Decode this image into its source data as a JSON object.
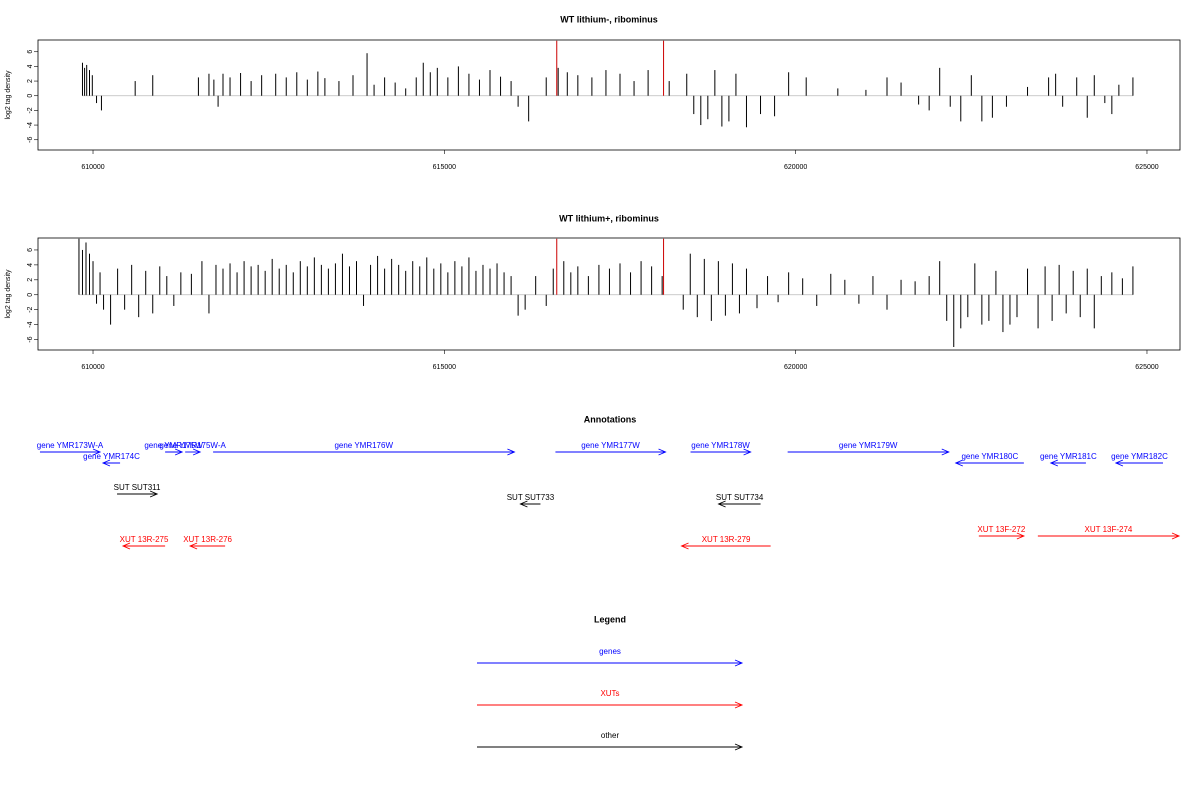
{
  "chart_data": [
    {
      "type": "bar",
      "title": "WT lithium-, ribominus",
      "ylabel": "log2 tag density",
      "xlim": [
        609217,
        625470
      ],
      "ylim": [
        -7.4,
        7.6
      ],
      "xticks": [
        610000,
        615000,
        620000,
        625000
      ],
      "yticks": [
        -6,
        -4,
        -2,
        0,
        2,
        4,
        6
      ],
      "series": [
        {
          "color": "#000000",
          "x": [
            609850,
            609880,
            609910,
            609950,
            609990,
            610050,
            610120,
            610600,
            610850,
            611500,
            611650,
            611720,
            611780,
            611850,
            611950,
            612100,
            612250,
            612400,
            612600,
            612750,
            612900,
            613050,
            613200,
            613300,
            613500,
            613700,
            613900,
            614000,
            614150,
            614300,
            614450,
            614600,
            614700,
            614800,
            614900,
            615050,
            615200,
            615350,
            615500,
            615650,
            615800,
            615950,
            616050,
            616200,
            616450,
            616620,
            616750,
            616900,
            617100,
            617300,
            617500,
            617700,
            617900,
            618200,
            618450,
            618550,
            618650,
            618750,
            618850,
            618950,
            619050,
            619150,
            619300,
            619500,
            619700,
            619900,
            620150,
            620600,
            621000,
            621300,
            621500,
            621750,
            621900,
            622050,
            622200,
            622350,
            622500,
            622650,
            622800,
            623000,
            623300,
            623600,
            623700,
            623800,
            624000,
            624150,
            624250,
            624400,
            624500,
            624600,
            624800
          ],
          "values": [
            4.5,
            3.8,
            4.2,
            3.5,
            2.8,
            -1,
            -2,
            2,
            2.8,
            2.5,
            3,
            2.2,
            -1.5,
            3,
            2.5,
            3.1,
            2,
            2.8,
            3,
            2.5,
            3.2,
            2.2,
            3.3,
            2.4,
            2,
            2.8,
            5.8,
            1.5,
            2.5,
            1.8,
            1,
            2.5,
            4.5,
            3.2,
            3.8,
            2.5,
            4,
            3,
            2.2,
            3.5,
            2.6,
            2,
            -1.5,
            -3.5,
            2.5,
            3.8,
            3.2,
            2.8,
            2.5,
            3.5,
            3,
            2,
            3.5,
            2,
            3,
            -2.5,
            -4,
            -3.2,
            3.5,
            -4.2,
            -3.5,
            3,
            -4.3,
            -2.5,
            -2.8,
            3.2,
            2.5,
            1,
            0.8,
            2.5,
            1.8,
            -1.2,
            -2,
            3.8,
            -1.5,
            -3.5,
            2.8,
            -3.5,
            -3,
            -1.5,
            1.2,
            2.5,
            3,
            -1.5,
            2.5,
            -3,
            2.8,
            -1,
            -2.5,
            1.5,
            2.5
          ]
        },
        {
          "color": "#cc0000",
          "x": [
            616600,
            618120
          ],
          "values": [
            7.5,
            7.5
          ]
        }
      ]
    },
    {
      "type": "bar",
      "title": "WT lithium+, ribominus",
      "ylabel": "log2 tag density",
      "xlim": [
        609217,
        625470
      ],
      "ylim": [
        -7.4,
        7.6
      ],
      "xticks": [
        610000,
        615000,
        620000,
        625000
      ],
      "yticks": [
        -6,
        -4,
        -2,
        0,
        2,
        4,
        6
      ],
      "series": [
        {
          "color": "#000000",
          "x": [
            609800,
            609850,
            609900,
            609950,
            610000,
            610050,
            610100,
            610150,
            610250,
            610350,
            610450,
            610550,
            610650,
            610750,
            610850,
            610950,
            611050,
            611150,
            611250,
            611400,
            611550,
            611650,
            611750,
            611850,
            611950,
            612050,
            612150,
            612250,
            612350,
            612450,
            612550,
            612650,
            612750,
            612850,
            612950,
            613050,
            613150,
            613250,
            613350,
            613450,
            613550,
            613650,
            613750,
            613850,
            613950,
            614050,
            614150,
            614250,
            614350,
            614450,
            614550,
            614650,
            614750,
            614850,
            614950,
            615050,
            615150,
            615250,
            615350,
            615450,
            615550,
            615650,
            615750,
            615850,
            615950,
            616050,
            616150,
            616300,
            616450,
            616550,
            616700,
            616800,
            616900,
            617050,
            617200,
            617350,
            617500,
            617650,
            617800,
            617950,
            618100,
            618400,
            618500,
            618600,
            618700,
            618800,
            618900,
            619000,
            619100,
            619200,
            619300,
            619450,
            619600,
            619750,
            619900,
            620100,
            620300,
            620500,
            620700,
            620900,
            621100,
            621300,
            621500,
            621700,
            621900,
            622050,
            622150,
            622250,
            622350,
            622450,
            622550,
            622650,
            622750,
            622850,
            622950,
            623050,
            623150,
            623300,
            623450,
            623550,
            623650,
            623750,
            623850,
            623950,
            624050,
            624150,
            624250,
            624350,
            624500,
            624650,
            624800
          ],
          "values": [
            7.5,
            6,
            7,
            5.5,
            4.5,
            -1.2,
            3,
            -2,
            -4,
            3.5,
            -2,
            4,
            -3,
            3.2,
            -2.5,
            3.8,
            2.5,
            -1.5,
            3,
            2.8,
            4.5,
            -2.5,
            4,
            3.5,
            4.2,
            3,
            4.5,
            3.8,
            4,
            3.2,
            4.8,
            3.5,
            4,
            3,
            4.5,
            3.8,
            5,
            4,
            3.5,
            4.2,
            5.5,
            3.8,
            4.5,
            -1.5,
            4,
            5.2,
            3.5,
            4.8,
            4,
            3.2,
            4.5,
            3.8,
            5,
            3.5,
            4.2,
            3,
            4.5,
            3.8,
            5,
            3.2,
            4,
            3.5,
            4.2,
            3,
            2.5,
            -2.8,
            -2,
            2.5,
            -1.5,
            3.5,
            4.5,
            3,
            3.8,
            2.5,
            4,
            3.5,
            4.2,
            3,
            4.5,
            3.8,
            2.5,
            -2,
            5.5,
            -3,
            4.8,
            -3.5,
            4.5,
            -2.8,
            4.2,
            -2.5,
            3.5,
            -1.8,
            2.5,
            -1,
            3,
            2.2,
            -1.5,
            2.8,
            2,
            -1.2,
            2.5,
            -2,
            2,
            1.8,
            2.5,
            4.5,
            -3.5,
            -7,
            -4.5,
            -3,
            4.2,
            -4,
            -3.5,
            3.2,
            -5,
            -4,
            -3,
            3.5,
            -4.5,
            3.8,
            -3.5,
            4,
            -2.5,
            3.2,
            -3,
            3.5,
            -4.5,
            2.5,
            3,
            2.2,
            3.8
          ]
        },
        {
          "color": "#cc0000",
          "x": [
            616600,
            618120
          ],
          "values": [
            7.5,
            7.5
          ]
        }
      ]
    }
  ],
  "annotations": {
    "title": "Annotations",
    "features": [
      {
        "label": "gene YMR173W-A",
        "start": 609245,
        "end": 610100,
        "strand": "+",
        "group": 0
      },
      {
        "label": "gene YMR174C",
        "start": 610142,
        "end": 610385,
        "strand": "-",
        "group": 0
      },
      {
        "label": "gene YMR175W",
        "start": 611026,
        "end": 611268,
        "strand": "+",
        "group": 0
      },
      {
        "label": "gene YMR175W-A",
        "start": 611311,
        "end": 611524,
        "strand": "+",
        "group": 0
      },
      {
        "label": "gene YMR176W",
        "start": 611709,
        "end": 615997,
        "strand": "+",
        "group": 0
      },
      {
        "label": "gene YMR177W",
        "start": 616581,
        "end": 618148,
        "strand": "+",
        "group": 0
      },
      {
        "label": "gene YMR178W",
        "start": 618504,
        "end": 619359,
        "strand": "+",
        "group": 0
      },
      {
        "label": "gene YMR179W",
        "start": 619886,
        "end": 622179,
        "strand": "+",
        "group": 0
      },
      {
        "label": "gene YMR180C",
        "start": 622279,
        "end": 623248,
        "strand": "-",
        "group": 0
      },
      {
        "label": "gene YMR181C",
        "start": 623632,
        "end": 624131,
        "strand": "-",
        "group": 0
      },
      {
        "label": "gene YMR182C",
        "start": 624558,
        "end": 625228,
        "strand": "-",
        "group": 0
      },
      {
        "label": "SUT SUT311",
        "start": 610342,
        "end": 610912,
        "strand": "+",
        "group": 2
      },
      {
        "label": "SUT SUT733",
        "start": 616083,
        "end": 616368,
        "strand": "-",
        "group": 2
      },
      {
        "label": "SUT SUT734",
        "start": 618903,
        "end": 619501,
        "strand": "-",
        "group": 2
      },
      {
        "label": "XUT 13R-275",
        "start": 610427,
        "end": 611026,
        "strand": "-",
        "group": 1
      },
      {
        "label": "XUT 13R-276",
        "start": 611382,
        "end": 611880,
        "strand": "-",
        "group": 1
      },
      {
        "label": "XUT 13R-279",
        "start": 618376,
        "end": 619644,
        "strand": "-",
        "group": 1
      },
      {
        "label": "XUT 13F-272",
        "start": 622607,
        "end": 623248,
        "strand": "+",
        "group": 1
      },
      {
        "label": "XUT 13F-274",
        "start": 623447,
        "end": 625456,
        "strand": "+",
        "group": 1
      }
    ]
  },
  "legend": {
    "title": "Legend",
    "items": [
      {
        "label": "genes",
        "color": "#0000ff"
      },
      {
        "label": "XUTs",
        "color": "#ff0000"
      },
      {
        "label": "other",
        "color": "#000000"
      }
    ]
  }
}
